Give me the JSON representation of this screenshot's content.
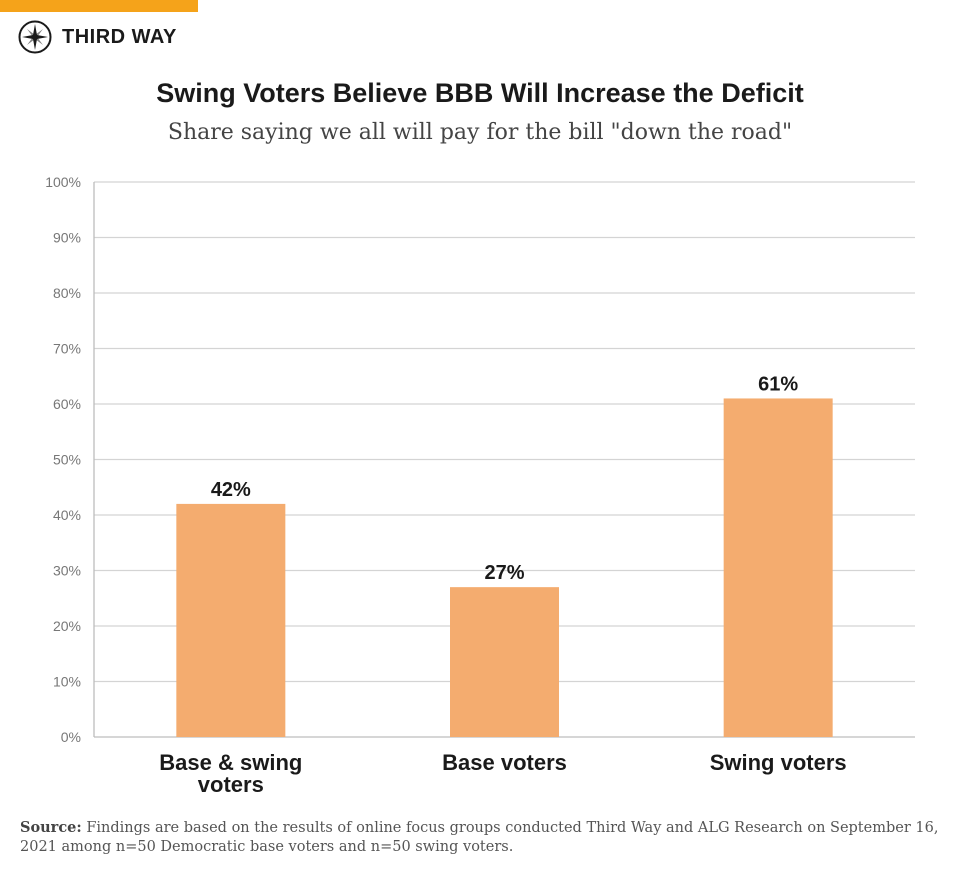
{
  "brand": {
    "name": "THIRD WAY",
    "logo_icon": "compass-icon",
    "accent_color": "#f5a31a"
  },
  "header": {
    "title": "Swing Voters Believe BBB Will Increase the Deficit",
    "subtitle": "Share saying we all will pay for the bill \"down the road\""
  },
  "chart_data": {
    "type": "bar",
    "title": "Swing Voters Believe BBB Will Increase the Deficit",
    "subtitle": "Share saying we all will pay for the bill \"down the road\"",
    "categories": [
      [
        "Base & swing",
        "voters"
      ],
      [
        "Base voters"
      ],
      [
        "Swing voters"
      ]
    ],
    "values": [
      42,
      27,
      61
    ],
    "value_labels": [
      "42%",
      "27%",
      "61%"
    ],
    "ylim": [
      0,
      100
    ],
    "yticks": [
      0,
      10,
      20,
      30,
      40,
      50,
      60,
      70,
      80,
      90,
      100
    ],
    "ytick_labels": [
      "0%",
      "10%",
      "20%",
      "30%",
      "40%",
      "50%",
      "60%",
      "70%",
      "80%",
      "90%",
      "100%"
    ],
    "xlabel": "",
    "ylabel": "",
    "grid": true,
    "legend": "none",
    "bar_color": "#f4ac6f",
    "grid_color": "#d4d4d4"
  },
  "source": {
    "label": "Source:",
    "text": "Findings are based on the results of online focus groups conducted Third Way and ALG Research on September 16, 2021 among n=50 Democratic base voters and n=50 swing voters."
  }
}
